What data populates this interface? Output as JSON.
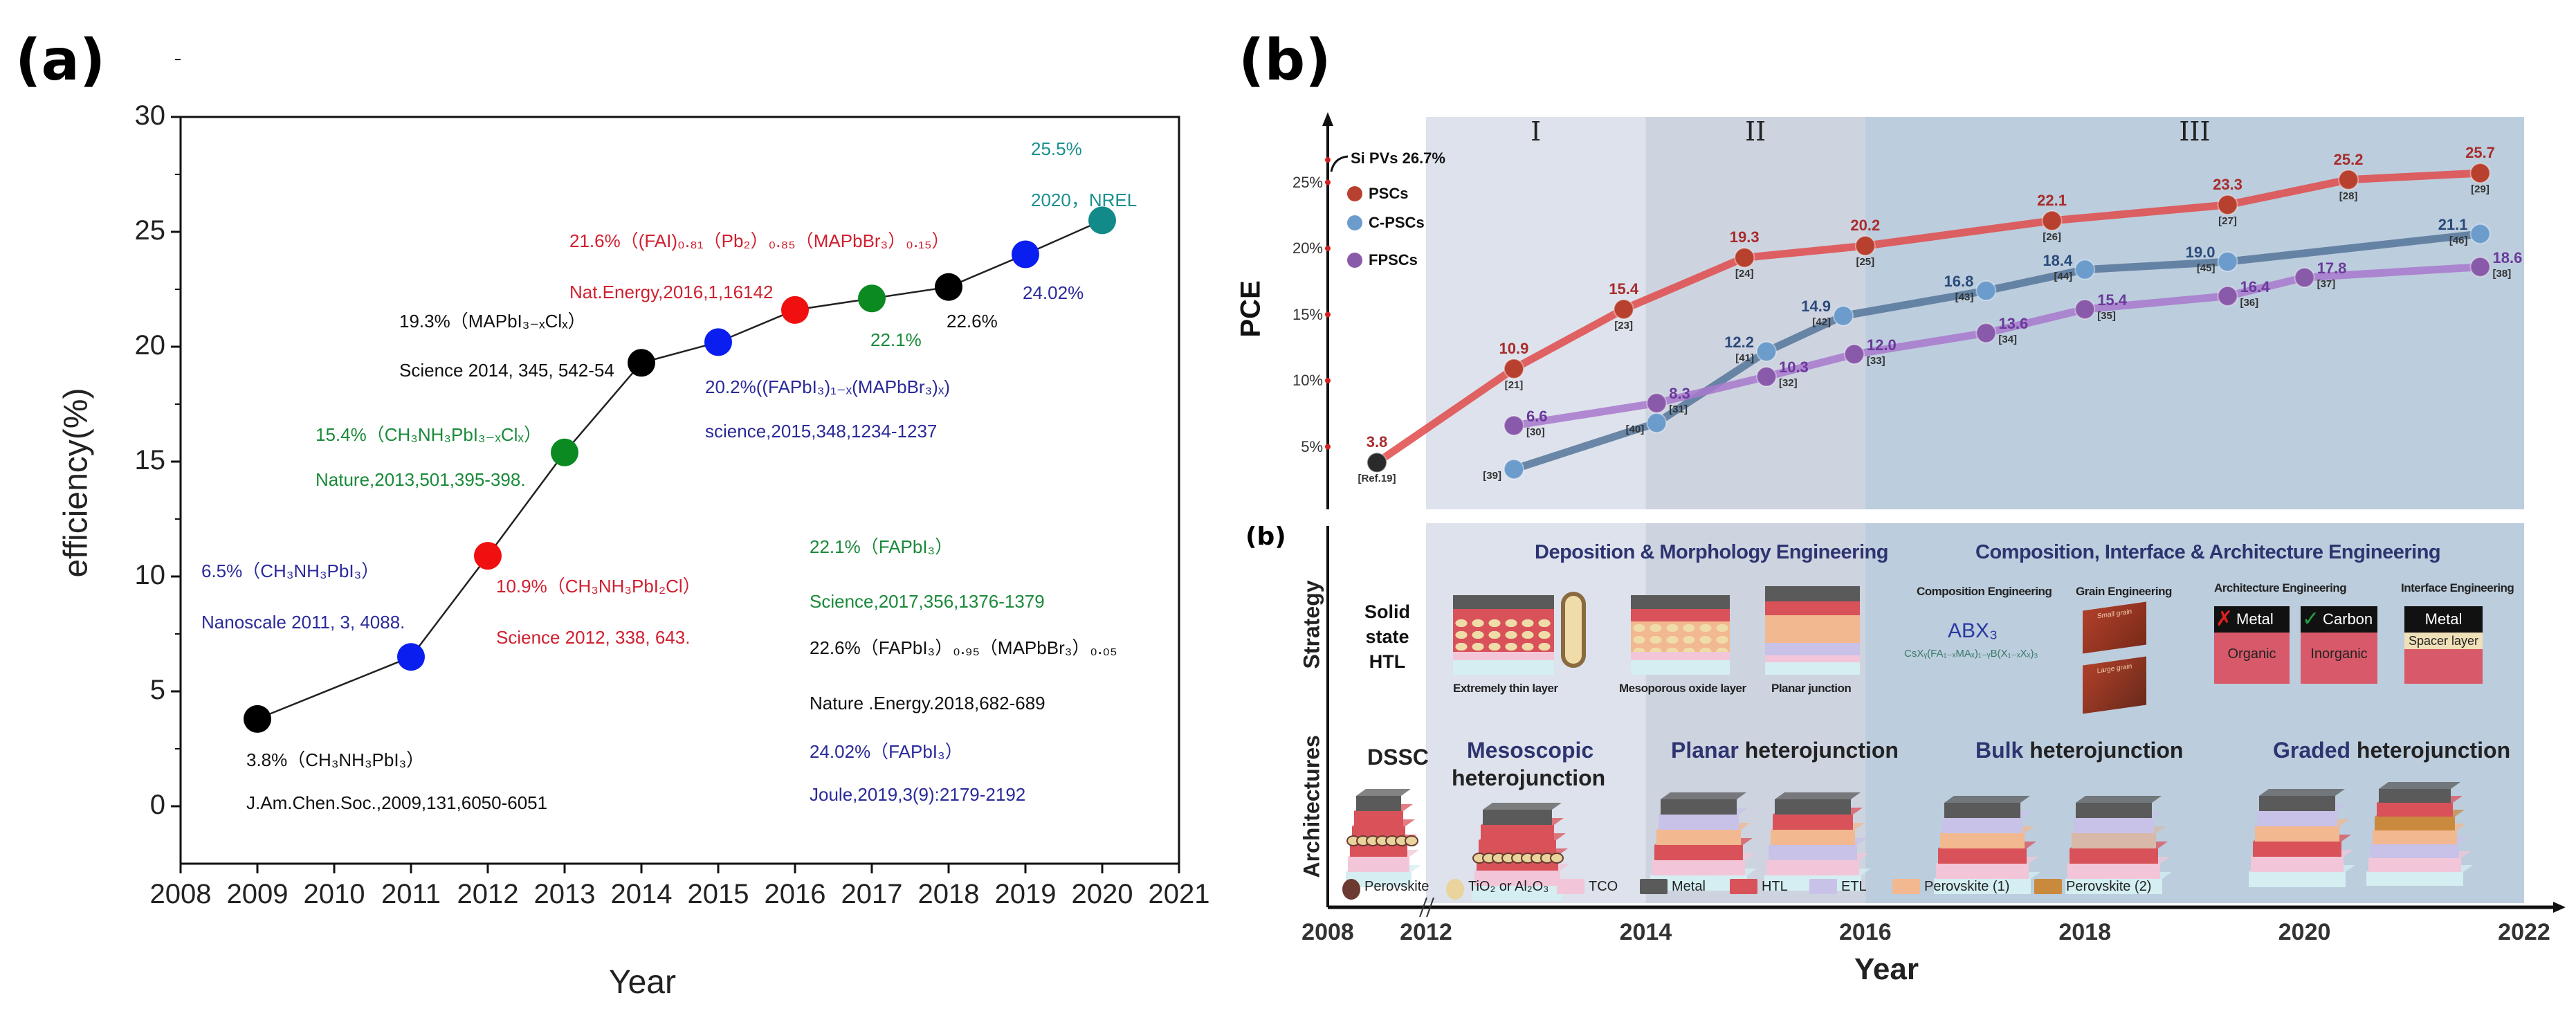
{
  "panel_a": {
    "label": "(a)",
    "chart_data": {
      "type": "line",
      "title": "",
      "xlabel": "Year",
      "ylabel": "efficiency(%)",
      "xlim": [
        2008,
        2021
      ],
      "ylim": [
        -2.5,
        30
      ],
      "xticks": [
        2008,
        2009,
        2010,
        2011,
        2012,
        2013,
        2014,
        2015,
        2016,
        2017,
        2018,
        2019,
        2020,
        2021
      ],
      "yticks": [
        0,
        5,
        10,
        15,
        20,
        25,
        30
      ],
      "grid": false,
      "x": [
        2009,
        2011,
        2012,
        2013,
        2014,
        2015,
        2016,
        2017,
        2018,
        2019,
        2020
      ],
      "y": [
        3.8,
        6.5,
        10.9,
        15.4,
        19.3,
        20.2,
        21.6,
        22.1,
        22.6,
        24.02,
        25.5
      ],
      "point_colors": [
        "#000000",
        "#0a1ef0",
        "#f01010",
        "#0b8a22",
        "#000000",
        "#0a1ef0",
        "#f01010",
        "#0b8a22",
        "#000000",
        "#0a1ef0",
        "#138a8a"
      ]
    },
    "annotations": [
      {
        "line1": "3.8%（CH₃NH₃PbI₃）",
        "line2": "J.Am.Chen.Soc.,2009,131,6050-6051",
        "color": "#111111"
      },
      {
        "line1": "6.5%（CH₃NH₃PbI₃）",
        "line2": "Nanoscale 2011, 3, 4088.",
        "color": "#2a2a9a"
      },
      {
        "line1": "10.9%（CH₃NH₃PbI₂Cl）",
        "line2": "Science 2012, 338, 643.",
        "color": "#d02030"
      },
      {
        "line1": "15.4%（CH₃NH₃PbI₃₋ₓClₓ）",
        "line2": "Nature,2013,501,395-398.",
        "color": "#1a8a3a"
      },
      {
        "line1": "19.3%（MAPbI₃₋ₓClₓ）",
        "line2": "Science 2014, 345, 542-54",
        "color": "#111111"
      },
      {
        "line1": "20.2%((FAPbI₃)₁₋ₓ(MAPbBr₃)ₓ)",
        "line2": "science,2015,348,1234-1237",
        "color": "#2a2a9a"
      },
      {
        "line1": "21.6%（(FAI)₀.₈₁（Pb₂）₀.₈₅（MAPbBr₃）₀.₁₅）",
        "line2": "Nat.Energy,2016,1,16142",
        "color": "#d02030"
      },
      {
        "line1": "22.1%",
        "color": "#1a8a3a"
      },
      {
        "line1": "22.6%",
        "color": "#111111"
      },
      {
        "line1": "24.02%",
        "color": "#2a2a9a"
      },
      {
        "line1": "25.5%",
        "line2": "2020，NREL",
        "color": "#1a9090"
      }
    ],
    "references": [
      {
        "text": "22.1%（FAPbI₃）",
        "color": "#1a8a3a"
      },
      {
        "text": "Science,2017,356,1376-1379",
        "color": "#1a8a3a"
      },
      {
        "text": "22.6%（FAPbI₃）₀.₉₅（MAPbBr₃）₀.₀₅",
        "color": "#111111"
      },
      {
        "text": "Nature .Energy.2018,682-689",
        "color": "#111111"
      },
      {
        "text": "24.02%（FAPbI₃）",
        "color": "#2a2a9a"
      },
      {
        "text": "Joule,2019,3(9):2179-2192",
        "color": "#2a2a9a"
      }
    ]
  },
  "panel_b": {
    "label": "(b)",
    "chart_data": {
      "type": "line",
      "title": "",
      "xlabel": "Year",
      "ylabel": "PCE",
      "xticks": [
        "2008",
        "2012",
        "2014",
        "2016",
        "2018",
        "2020",
        "2022"
      ],
      "xtick_values": [
        2008,
        2012,
        2014,
        2016,
        2018,
        2020,
        2022
      ],
      "axis_break_after": 2008,
      "yticks": [
        "5%",
        "10%",
        "15%",
        "20%",
        "25%"
      ],
      "ytick_values": [
        5,
        10,
        15,
        20,
        25
      ],
      "ylim": [
        0,
        27
      ],
      "reference_line": {
        "label": "Si PVs 26.7%",
        "value": 26.7
      },
      "periods": [
        {
          "label": "I",
          "from": 2012,
          "to": 2014,
          "color": "#dde2ec"
        },
        {
          "label": "II",
          "from": 2014,
          "to": 2016,
          "color": "#cdd4e0"
        },
        {
          "label": "III",
          "from": 2016,
          "to": 2022,
          "color": "#bccddd"
        }
      ],
      "legend_position": "top-left",
      "series": [
        {
          "name": "PSCs",
          "color": "#e04a4a",
          "dot": "#b8402e",
          "label_color": "#a82c2c",
          "x": [
            2010,
            2012.8,
            2013.8,
            2014.9,
            2016.0,
            2017.7,
            2019.3,
            2020.4,
            2021.6
          ],
          "y": [
            3.8,
            10.9,
            15.4,
            19.3,
            20.2,
            22.1,
            23.3,
            25.2,
            25.7
          ],
          "labels": [
            "3.8",
            "10.9",
            "15.4",
            "19.3",
            "20.2",
            "22.1",
            "23.3",
            "25.2",
            "25.7"
          ],
          "refs": [
            "[Ref.19]",
            "[21]",
            "[23]",
            "[24]",
            "[25]",
            "[26]",
            "[27]",
            "[28]",
            "[29]"
          ]
        },
        {
          "name": "C-PSCs",
          "color": "#55759a",
          "dot": "#6c9ccc",
          "label_color": "#2a4a7a",
          "x": [
            2012.8,
            2014.1,
            2015.1,
            2015.8,
            2017.1,
            2018.0,
            2019.3,
            2021.6
          ],
          "y": [
            3.3,
            6.8,
            12.2,
            14.9,
            16.8,
            18.4,
            19.0,
            21.1
          ],
          "labels": [
            "",
            "",
            "12.2",
            "14.9",
            "16.8",
            "18.4",
            "19.0",
            "21.1"
          ],
          "refs": [
            "[39]",
            "[40]",
            "[41]",
            "[42]",
            "[43]",
            "[44]",
            "[45]",
            "[46]"
          ]
        },
        {
          "name": "FPSCs",
          "color": "#a878cc",
          "dot": "#8a5aaa",
          "label_color": "#6a3a9a",
          "x": [
            2012.8,
            2014.1,
            2015.1,
            2015.9,
            2017.1,
            2018.0,
            2019.3,
            2020.0,
            2021.6
          ],
          "y": [
            6.6,
            8.3,
            10.3,
            12.0,
            13.6,
            15.4,
            16.4,
            17.8,
            18.6
          ],
          "labels": [
            "6.6",
            "8.3",
            "10.3",
            "12.0",
            "13.6",
            "15.4",
            "16.4",
            "17.8",
            "18.6"
          ],
          "refs": [
            "[30]",
            "[31]",
            "[32]",
            "[33]",
            "[34]",
            "[35]",
            "[36]",
            "[37]",
            "[38]"
          ]
        }
      ]
    },
    "timeline": {
      "label": "(b)",
      "row_strategy": "Strategy",
      "row_architectures": "Architectures",
      "header_left": "Deposition & Morphology Engineering",
      "header_right": "Composition, Interface & Architecture Engineering",
      "solid_state_htl": [
        "Solid",
        "state",
        "HTL"
      ],
      "captions": {
        "extremely_thin": "Extremely thin layer",
        "mesoporous": "Mesoporous oxide layer",
        "planar": "Planar junction",
        "composition": "Composition Engineering",
        "grain": "Grain Engineering",
        "architecture": "Architecture Engineering",
        "interface": "Interface Engineering",
        "small_grain": "Small grain",
        "large_grain": "Large grain"
      },
      "abx3": "ABX₃",
      "formula": "CsXᵧ(FA₁₋ₓMAₓ)₁₋ᵧB(X₁₋ₓXₓ)₃",
      "arch_boxes": {
        "metal": "Metal",
        "organic": "Organic",
        "carbon": "Carbon",
        "inorganic": "Inorganic",
        "metal2": "Metal",
        "spacer": "Spacer layer"
      },
      "architectures": {
        "dssc": "DSSC",
        "mesoscopic_1": "Mesoscopic",
        "mesoscopic_2": "heterojunction",
        "planar_1": "Planar",
        "planar_2": "heterojunction",
        "bulk_1": "Bulk",
        "bulk_2": "heterojunction",
        "graded_1": "Graded",
        "graded_2": "heterojunction"
      },
      "legend": [
        {
          "label": "Perovskite",
          "color": "#6b3a30"
        },
        {
          "label": "TiO₂ or Al₂O₃",
          "color": "#e8d49c"
        },
        {
          "label": "TCO",
          "color": "#f2c6d8"
        },
        {
          "label": "Metal",
          "color": "#5a5a5a"
        },
        {
          "label": "HTL",
          "color": "#d9525a"
        },
        {
          "label": "ETL",
          "color": "#c8c2e8"
        },
        {
          "label": "Perovskite (1)",
          "color": "#f2b88f"
        },
        {
          "label": "Perovskite (2)",
          "color": "#c98a3e"
        }
      ]
    }
  }
}
